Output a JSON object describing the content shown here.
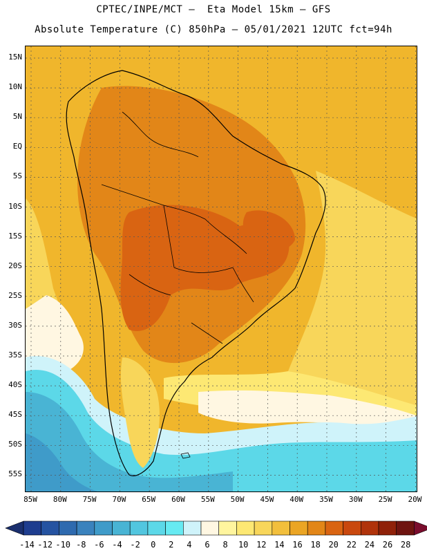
{
  "title_line1": "CPTEC/INPE/MCT —  Eta Model 15km — GFS",
  "title_line2": "Absolute Temperature (C) 850hPa — 05/01/2021 12UTC fct=94h",
  "lat_labels": [
    "15N",
    "10N",
    "5N",
    "EQ",
    "5S",
    "10S",
    "15S",
    "20S",
    "25S",
    "30S",
    "35S",
    "40S",
    "45S",
    "50S",
    "55S"
  ],
  "lon_labels": [
    "85W",
    "80W",
    "75W",
    "70W",
    "65W",
    "60W",
    "55W",
    "50W",
    "45W",
    "40W",
    "35W",
    "30W",
    "25W",
    "20W"
  ],
  "colorbar": {
    "labels": [
      "-14",
      "-12",
      "-10",
      "-8",
      "-6",
      "-4",
      "-2",
      "0",
      "2",
      "4",
      "6",
      "8",
      "10",
      "12",
      "14",
      "16",
      "18",
      "20",
      "22",
      "24",
      "26",
      "28"
    ],
    "colors": [
      "#1e3d8f",
      "#2553a1",
      "#2e6aaf",
      "#3a82bd",
      "#3f9bc9",
      "#49b4d4",
      "#52c6df",
      "#5cd8e8",
      "#66eaf2",
      "#cff3fa",
      "#fff7e2",
      "#fff59e",
      "#fde873",
      "#f8d65a",
      "#f2bf3c",
      "#eba524",
      "#e28618",
      "#d96412",
      "#c9480e",
      "#b0330b",
      "#8f2109",
      "#6e1410"
    ],
    "under_color": "#1a2f6e",
    "over_color": "#7a0d2d"
  },
  "colors": {
    "ocean_warm": "#f0b62c",
    "land_warm": "#eba524",
    "hot": "#e28618",
    "hotter": "#d96412",
    "mild": "#f8d65a",
    "cool": "#fde873",
    "cold_cream": "#fff7e2",
    "cold_light": "#cff3fa",
    "cold_cyan": "#5cd8e8",
    "cold_mid": "#49b4d4",
    "cold_deep": "#3f9bc9",
    "border": "#000000",
    "grid": "#555555"
  }
}
